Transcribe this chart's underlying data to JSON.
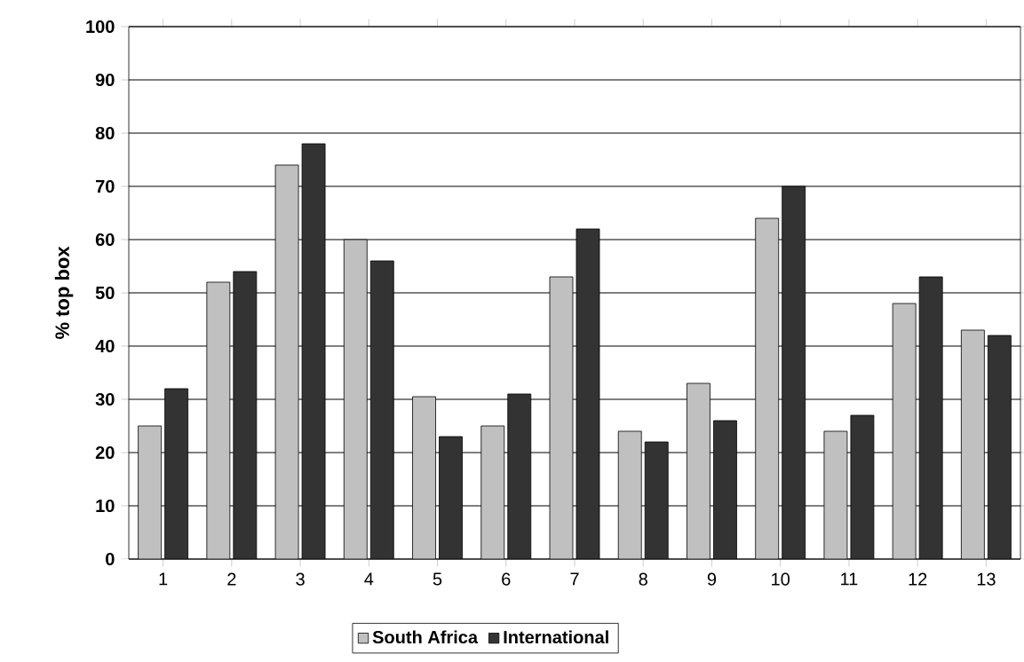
{
  "chart_data": {
    "type": "bar",
    "ylabel": "% top box",
    "categories": [
      "1",
      "2",
      "3",
      "4",
      "5",
      "6",
      "7",
      "8",
      "9",
      "10",
      "11",
      "12",
      "13"
    ],
    "series": [
      {
        "name": "South Africa",
        "color": "#c0c0c0",
        "values": [
          25,
          52,
          74,
          60,
          30.5,
          25,
          53,
          24,
          33,
          64,
          24,
          48,
          43
        ]
      },
      {
        "name": "International",
        "color": "#333333",
        "values": [
          32,
          54,
          78,
          56,
          23,
          31,
          62,
          22,
          26,
          70,
          27,
          53,
          42
        ]
      }
    ],
    "ylim": [
      0,
      100
    ],
    "yticks": [
      0,
      10,
      20,
      30,
      40,
      50,
      60,
      70,
      80,
      90,
      100
    ],
    "grid": "y",
    "legend": "bottom"
  }
}
